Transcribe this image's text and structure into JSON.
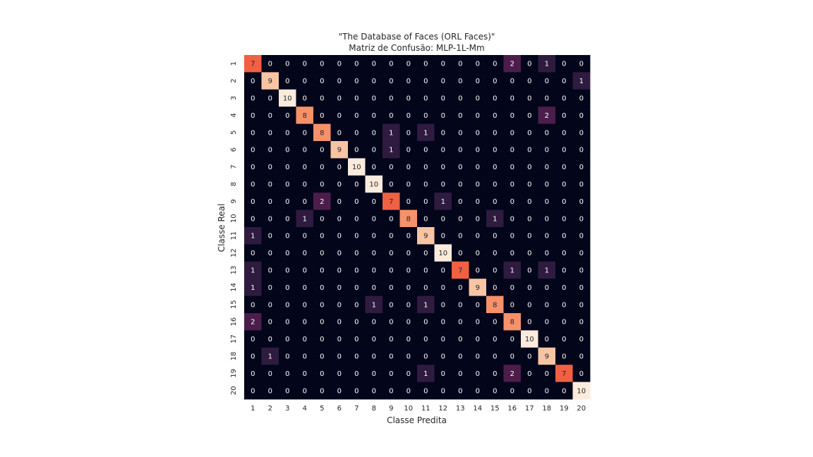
{
  "chart_data": {
    "type": "heatmap",
    "title": "\"The Database of Faces (ORL Faces)\"",
    "subtitle": "Matriz de Confusão: MLP-1L-Mm",
    "xlabel": "Classe Predita",
    "ylabel": "Classe Real",
    "x_categories": [
      "1",
      "2",
      "3",
      "4",
      "5",
      "6",
      "7",
      "8",
      "9",
      "10",
      "11",
      "12",
      "13",
      "14",
      "15",
      "16",
      "17",
      "18",
      "19",
      "20"
    ],
    "y_categories": [
      "1",
      "2",
      "3",
      "4",
      "5",
      "6",
      "7",
      "8",
      "9",
      "10",
      "11",
      "12",
      "13",
      "14",
      "15",
      "16",
      "17",
      "18",
      "19",
      "20"
    ],
    "vmin": 0,
    "vmax": 10,
    "colormap": "rocket",
    "colorbar": false,
    "matrix": [
      [
        7,
        0,
        0,
        0,
        0,
        0,
        0,
        0,
        0,
        0,
        0,
        0,
        0,
        0,
        0,
        2,
        0,
        1,
        0,
        0
      ],
      [
        0,
        9,
        0,
        0,
        0,
        0,
        0,
        0,
        0,
        0,
        0,
        0,
        0,
        0,
        0,
        0,
        0,
        0,
        0,
        1
      ],
      [
        0,
        0,
        10,
        0,
        0,
        0,
        0,
        0,
        0,
        0,
        0,
        0,
        0,
        0,
        0,
        0,
        0,
        0,
        0,
        0
      ],
      [
        0,
        0,
        0,
        8,
        0,
        0,
        0,
        0,
        0,
        0,
        0,
        0,
        0,
        0,
        0,
        0,
        0,
        2,
        0,
        0
      ],
      [
        0,
        0,
        0,
        0,
        8,
        0,
        0,
        0,
        1,
        0,
        1,
        0,
        0,
        0,
        0,
        0,
        0,
        0,
        0,
        0
      ],
      [
        0,
        0,
        0,
        0,
        0,
        9,
        0,
        0,
        1,
        0,
        0,
        0,
        0,
        0,
        0,
        0,
        0,
        0,
        0,
        0
      ],
      [
        0,
        0,
        0,
        0,
        0,
        0,
        10,
        0,
        0,
        0,
        0,
        0,
        0,
        0,
        0,
        0,
        0,
        0,
        0,
        0
      ],
      [
        0,
        0,
        0,
        0,
        0,
        0,
        0,
        10,
        0,
        0,
        0,
        0,
        0,
        0,
        0,
        0,
        0,
        0,
        0,
        0
      ],
      [
        0,
        0,
        0,
        0,
        2,
        0,
        0,
        0,
        7,
        0,
        0,
        1,
        0,
        0,
        0,
        0,
        0,
        0,
        0,
        0
      ],
      [
        0,
        0,
        0,
        1,
        0,
        0,
        0,
        0,
        0,
        8,
        0,
        0,
        0,
        0,
        1,
        0,
        0,
        0,
        0,
        0
      ],
      [
        1,
        0,
        0,
        0,
        0,
        0,
        0,
        0,
        0,
        0,
        9,
        0,
        0,
        0,
        0,
        0,
        0,
        0,
        0,
        0
      ],
      [
        0,
        0,
        0,
        0,
        0,
        0,
        0,
        0,
        0,
        0,
        0,
        10,
        0,
        0,
        0,
        0,
        0,
        0,
        0,
        0
      ],
      [
        1,
        0,
        0,
        0,
        0,
        0,
        0,
        0,
        0,
        0,
        0,
        0,
        7,
        0,
        0,
        1,
        0,
        1,
        0,
        0
      ],
      [
        1,
        0,
        0,
        0,
        0,
        0,
        0,
        0,
        0,
        0,
        0,
        0,
        0,
        9,
        0,
        0,
        0,
        0,
        0,
        0
      ],
      [
        0,
        0,
        0,
        0,
        0,
        0,
        0,
        1,
        0,
        0,
        1,
        0,
        0,
        0,
        8,
        0,
        0,
        0,
        0,
        0
      ],
      [
        2,
        0,
        0,
        0,
        0,
        0,
        0,
        0,
        0,
        0,
        0,
        0,
        0,
        0,
        0,
        8,
        0,
        0,
        0,
        0
      ],
      [
        0,
        0,
        0,
        0,
        0,
        0,
        0,
        0,
        0,
        0,
        0,
        0,
        0,
        0,
        0,
        0,
        10,
        0,
        0,
        0
      ],
      [
        0,
        1,
        0,
        0,
        0,
        0,
        0,
        0,
        0,
        0,
        0,
        0,
        0,
        0,
        0,
        0,
        0,
        9,
        0,
        0
      ],
      [
        0,
        0,
        0,
        0,
        0,
        0,
        0,
        0,
        0,
        0,
        1,
        0,
        0,
        0,
        0,
        2,
        0,
        0,
        7,
        0
      ],
      [
        0,
        0,
        0,
        0,
        0,
        0,
        0,
        0,
        0,
        0,
        0,
        0,
        0,
        0,
        0,
        0,
        0,
        0,
        0,
        10
      ]
    ],
    "color_scale": {
      "0": "#03051a",
      "1": "#2e1b3f",
      "2": "#4c1d4b",
      "7": "#f06043",
      "8": "#f6916a",
      "9": "#f7c4a4",
      "10": "#faebdd"
    },
    "text_colors": {
      "dark_bg": "#ffffff",
      "light_bg": "#262626"
    }
  }
}
